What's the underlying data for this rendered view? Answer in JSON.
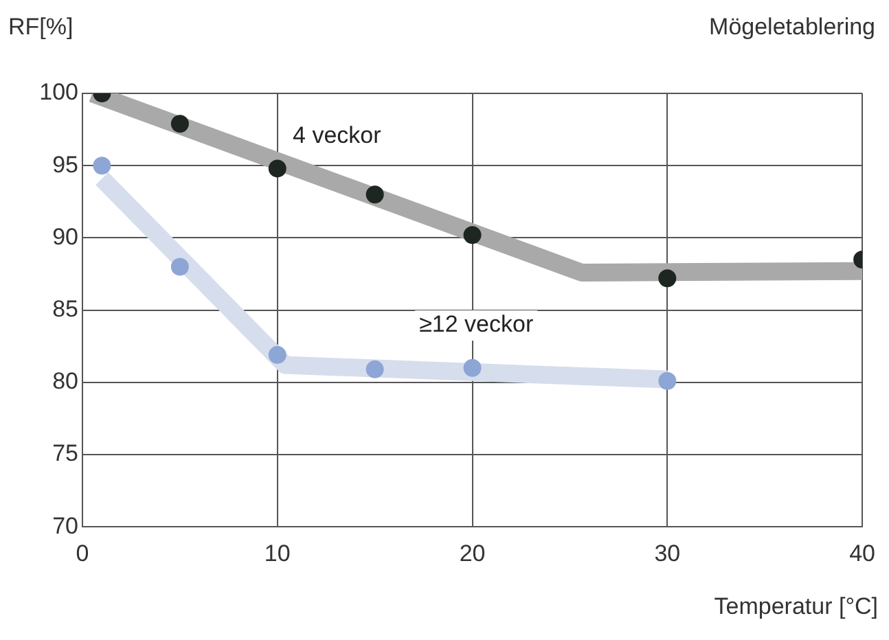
{
  "chart_data": {
    "type": "scatter",
    "title": "Mögeletablering",
    "xlabel": "Temperatur [°C]",
    "ylabel": "RF[%]",
    "series": [
      {
        "type": "line",
        "name": "4 veckor",
        "color": "#a9a9a9",
        "marker": "none",
        "x": [
          0.5,
          25.6,
          40
        ],
        "values": [
          100,
          87.6,
          87.7
        ]
      },
      {
        "type": "line",
        "name": "≥12 veckor",
        "color": "#d6ddec",
        "marker": "none",
        "x": [
          1,
          10.4,
          30
        ],
        "values": [
          94.1,
          81.2,
          80.2
        ]
      },
      {
        "color": "#1e2622",
        "x": [
          1,
          5,
          10,
          15,
          20,
          30,
          40
        ],
        "values": [
          100,
          97.9,
          94.8,
          93,
          90.2,
          87.2,
          88.5
        ]
      },
      {
        "color": "#8ea6d5",
        "x": [
          1,
          5,
          10,
          15,
          20,
          30
        ],
        "values": [
          95,
          88,
          81.9,
          80.9,
          81,
          80.1
        ]
      }
    ],
    "xlim": [
      0,
      40
    ],
    "xticks": [
      0,
      10,
      20,
      30,
      40
    ],
    "ylim": [
      70,
      100
    ],
    "yticks": [
      70,
      75,
      80,
      85,
      90,
      95,
      100
    ],
    "grid": true,
    "legend": false,
    "marker": "circle"
  }
}
